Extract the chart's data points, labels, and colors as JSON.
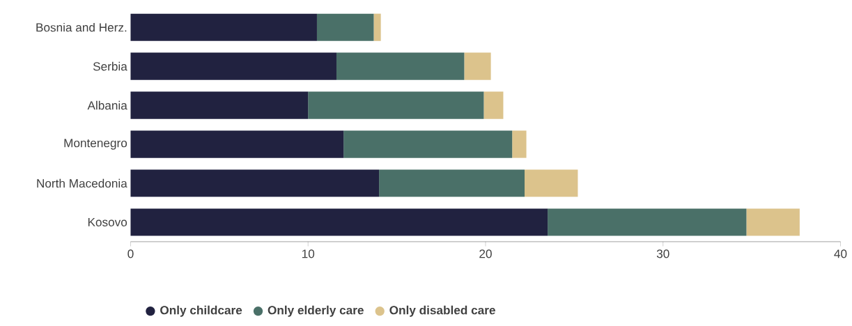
{
  "chart_data": {
    "type": "bar",
    "orientation": "horizontal",
    "stacked": true,
    "categories": [
      "Bosnia and Herz.",
      "Serbia",
      "Albania",
      "Montenegro",
      "North Macedonia",
      "Kosovo"
    ],
    "series": [
      {
        "name": "Only childcare",
        "color": "#212240",
        "values": [
          10.5,
          11.6,
          10.0,
          12.0,
          14.0,
          23.5
        ]
      },
      {
        "name": "Only elderly care",
        "color": "#4a7068",
        "values": [
          3.2,
          7.2,
          9.9,
          9.5,
          8.2,
          11.2
        ]
      },
      {
        "name": "Only disabled care",
        "color": "#dcc38c",
        "values": [
          0.4,
          1.5,
          1.1,
          0.8,
          3.0,
          3.0
        ]
      }
    ],
    "xlim": [
      0,
      40
    ],
    "xticks": [
      0,
      10,
      20,
      30,
      40
    ],
    "grid": false,
    "legend": "bottom"
  }
}
